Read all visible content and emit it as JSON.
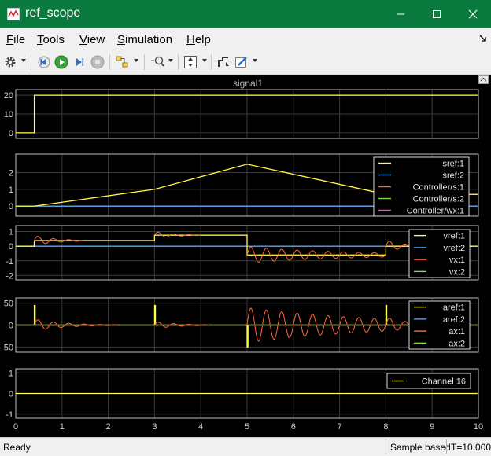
{
  "window": {
    "title": "ref_scope"
  },
  "menu": {
    "file": {
      "u": "F",
      "rest": "ile"
    },
    "tools": {
      "u": "T",
      "rest": "ools"
    },
    "view": {
      "u": "V",
      "rest": "iew"
    },
    "simulation": {
      "u": "S",
      "rest": "imulation"
    },
    "help": {
      "u": "H",
      "rest": "elp"
    }
  },
  "plot": {
    "title": "signal1"
  },
  "status": {
    "ready": "Ready",
    "mode": "Sample based",
    "time": "T=10.000"
  },
  "colors": {
    "yellow": "#ffff40",
    "blue": "#4aa3ff",
    "orange": "#ff6a3c",
    "green": "#78e040",
    "magenta": "#ff40ff",
    "grid": "#3a3a3a",
    "axes": "#bfbfbf",
    "titlebar": "#0b7a3e"
  },
  "chart_data": [
    {
      "type": "line",
      "xlim": [
        0,
        10
      ],
      "ylim": [
        -3,
        23
      ],
      "yticks": [
        0,
        10,
        20
      ],
      "yticklabels": [
        "0",
        "10",
        "20"
      ],
      "xticks": [
        0,
        1,
        2,
        3,
        4,
        5,
        6,
        7,
        8,
        9,
        10
      ],
      "xticklabels": [],
      "grid": true,
      "series": [
        {
          "color": "yellow",
          "x": [
            0,
            0.4,
            0.4,
            10
          ],
          "y": [
            0,
            0,
            20,
            20
          ]
        }
      ],
      "legend": []
    },
    {
      "type": "line",
      "xlim": [
        0,
        10
      ],
      "ylim": [
        -0.6,
        3.1
      ],
      "yticks": [
        0,
        1,
        2
      ],
      "yticklabels": [
        "0",
        "1",
        "2"
      ],
      "xticks": [
        0,
        1,
        2,
        3,
        4,
        5,
        6,
        7,
        8,
        9,
        10
      ],
      "xticklabels": [],
      "grid": true,
      "series": [
        {
          "name": "sref:1",
          "color": "yellow",
          "x": [
            0,
            0.4,
            3,
            5,
            8,
            10
          ],
          "y": [
            0,
            0,
            1,
            2.5,
            0.7,
            0.7
          ]
        },
        {
          "name": "sref:2",
          "color": "blue",
          "x": [
            0,
            10
          ],
          "y": [
            0,
            0
          ]
        },
        {
          "name": "Controller/s:1",
          "color": "orange",
          "x": [
            0,
            0.4,
            3,
            5,
            8,
            10
          ],
          "y": [
            0,
            0,
            1,
            2.5,
            0.7,
            0.7
          ]
        },
        {
          "name": "Controller/s:2",
          "color": "green",
          "x": [
            0,
            10
          ],
          "y": [
            0,
            0
          ]
        },
        {
          "name": "Controller/wx:1",
          "color": "magenta",
          "x": [
            0,
            10
          ],
          "y": [
            0,
            0
          ]
        }
      ],
      "legend": [
        "sref:1",
        "sref:2",
        "Controller/s:1",
        "Controller/s:2",
        "Controller/wx:1"
      ]
    },
    {
      "type": "line",
      "xlim": [
        0,
        10
      ],
      "ylim": [
        -2.3,
        1.4
      ],
      "yticks": [
        -2,
        -1,
        0,
        1
      ],
      "yticklabels": [
        "-2",
        "-1",
        "0",
        "1"
      ],
      "xticks": [
        0,
        1,
        2,
        3,
        4,
        5,
        6,
        7,
        8,
        9,
        10
      ],
      "xticklabels": [],
      "grid": true,
      "series": [
        {
          "name": "vref:1",
          "color": "yellow",
          "x": [
            0,
            0.4,
            0.4,
            3,
            3,
            5,
            5,
            8,
            8,
            10
          ],
          "y": [
            0,
            0,
            0.38,
            0.38,
            0.75,
            0.75,
            -0.6,
            -0.6,
            0,
            0
          ]
        },
        {
          "name": "vref:2",
          "color": "blue",
          "x": [
            0,
            10
          ],
          "y": [
            0,
            0
          ]
        },
        {
          "name": "vx:1",
          "color": "orange",
          "x": [
            0,
            0.4,
            0.4,
            3,
            3,
            5,
            5,
            8,
            8,
            10
          ],
          "y": [
            0,
            0,
            0.38,
            0.38,
            0.75,
            0.75,
            -0.6,
            -0.6,
            0,
            0
          ]
        },
        {
          "name": "vx:2",
          "color": "green",
          "x": [
            0,
            10
          ],
          "y": [
            0,
            0
          ]
        }
      ],
      "legend": [
        "vref:1",
        "vref:2",
        "vx:1",
        "vx:2"
      ]
    },
    {
      "type": "line",
      "xlim": [
        0,
        10
      ],
      "ylim": [
        -62,
        62
      ],
      "yticks": [
        -50,
        0,
        50
      ],
      "yticklabels": [
        "-50",
        "0",
        "50"
      ],
      "xticks": [
        0,
        1,
        2,
        3,
        4,
        5,
        6,
        7,
        8,
        9,
        10
      ],
      "xticklabels": [],
      "grid": true,
      "series": [
        {
          "name": "aref:1",
          "color": "yellow",
          "x": [
            0,
            0.4,
            0.4,
            0.42,
            0.42,
            3,
            3,
            3.02,
            3.02,
            5,
            5,
            5.02,
            5.02,
            8,
            8,
            8.02,
            8.02,
            10
          ],
          "y": [
            0,
            0,
            45,
            45,
            0,
            0,
            45,
            45,
            0,
            0,
            -50,
            -50,
            0,
            0,
            45,
            45,
            0,
            0
          ]
        },
        {
          "name": "aref:2",
          "color": "blue",
          "x": [
            0,
            10
          ],
          "y": [
            0,
            0
          ]
        },
        {
          "name": "ax:1",
          "color": "orange",
          "x": [
            0,
            10
          ],
          "y": [
            0,
            0
          ]
        },
        {
          "name": "ax:2",
          "color": "green",
          "x": [
            0,
            10
          ],
          "y": [
            0,
            0
          ]
        }
      ],
      "legend": [
        "aref:1",
        "aref:2",
        "ax:1",
        "ax:2"
      ]
    },
    {
      "type": "line",
      "xlim": [
        0,
        10
      ],
      "ylim": [
        -1.2,
        1.2
      ],
      "yticks": [
        -1,
        0,
        1
      ],
      "yticklabels": [
        "-1",
        "0",
        "1"
      ],
      "xticks": [
        0,
        1,
        2,
        3,
        4,
        5,
        6,
        7,
        8,
        9,
        10
      ],
      "xticklabels": [
        "0",
        "1",
        "2",
        "3",
        "4",
        "5",
        "6",
        "7",
        "8",
        "9",
        "10"
      ],
      "grid": true,
      "series": [
        {
          "name": "Channel 16",
          "color": "yellow",
          "x": [
            0,
            10
          ],
          "y": [
            0,
            0
          ]
        }
      ],
      "legend": [
        "Channel 16"
      ]
    }
  ]
}
